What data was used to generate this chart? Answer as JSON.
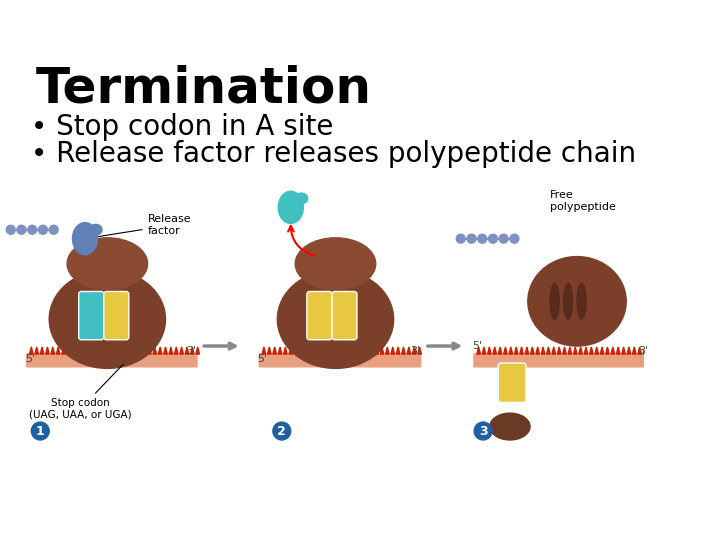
{
  "title": "Termination",
  "bullet1": "Stop codon in A site",
  "bullet2": "Release factor releases polypeptide chain",
  "bg_color": "#ffffff",
  "title_fontsize": 36,
  "bullet_fontsize": 20,
  "title_color": "#000000",
  "bullet_color": "#000000",
  "ribosome_color": "#7B3F2A",
  "ribosome_highlight": "#A0522D",
  "mRNA_color": "#E8A080",
  "mRNA_teeth_color": "#CC2200",
  "tRNA_cyan_color": "#40C0C0",
  "tRNA_yellow_color": "#E8C840",
  "release_factor_color": "#6080B8",
  "polypeptide_color": "#8090C0",
  "arrow_color": "#888888",
  "label1": "Release\nfactor",
  "label2": "Stop codon\n(UAG, UAA, or UGA)",
  "label3": "Free\npolypeptide",
  "num1": "1",
  "num2": "2",
  "num3": "3",
  "num_color": "#2060A0",
  "label_color": "#000000"
}
